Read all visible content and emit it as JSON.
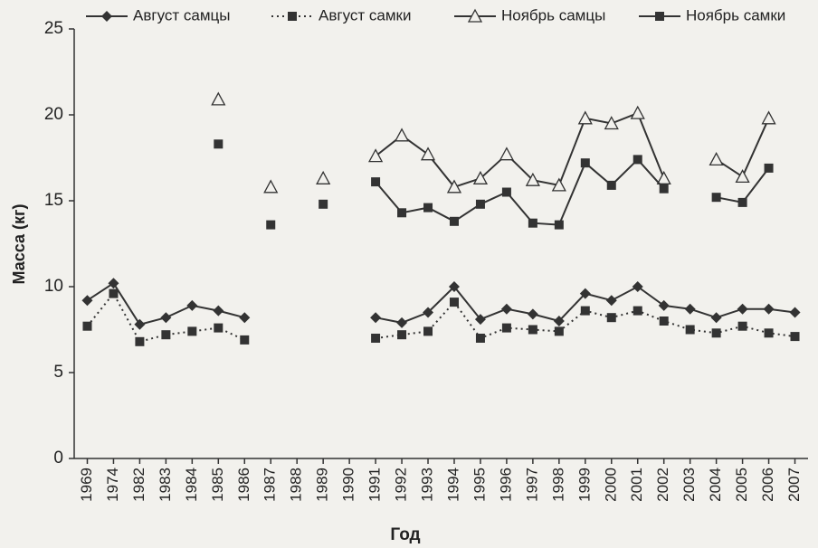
{
  "chart_data": {
    "type": "line",
    "y_label": "Масса (кг)",
    "x_label": "Год",
    "categories": [
      "1969",
      "1974",
      "1982",
      "1983",
      "1984",
      "1985",
      "1986",
      "1987",
      "1988",
      "1989",
      "1990",
      "1991",
      "1992",
      "1993",
      "1994",
      "1995",
      "1996",
      "1997",
      "1998",
      "1999",
      "2000",
      "2001",
      "2002",
      "2003",
      "2004",
      "2005",
      "2006",
      "2007"
    ],
    "series": [
      {
        "name": "Август самцы",
        "color": "#333333",
        "marker": "diamond",
        "line_style": "solid",
        "values": [
          9.2,
          10.2,
          7.8,
          8.2,
          8.9,
          8.6,
          8.2,
          null,
          null,
          null,
          null,
          8.2,
          7.9,
          8.5,
          10.0,
          8.1,
          8.7,
          8.4,
          8.0,
          9.6,
          9.2,
          10.0,
          8.9,
          8.7,
          8.2,
          8.7,
          8.7,
          8.5
        ]
      },
      {
        "name": "Август самки",
        "color": "#333333",
        "marker": "square",
        "line_style": "dotted",
        "values": [
          7.7,
          9.6,
          6.8,
          7.2,
          7.4,
          7.6,
          6.9,
          null,
          null,
          null,
          null,
          7.0,
          7.2,
          7.4,
          9.1,
          7.0,
          7.6,
          7.5,
          7.4,
          8.6,
          8.2,
          8.6,
          8.0,
          7.5,
          7.3,
          7.7,
          7.3,
          7.1
        ]
      },
      {
        "name": "Ноябрь самцы",
        "color": "#333333",
        "marker": "triangle-open",
        "line_style": "solid",
        "values": [
          null,
          null,
          null,
          null,
          null,
          20.9,
          null,
          15.8,
          null,
          16.3,
          null,
          17.6,
          18.8,
          17.7,
          15.8,
          16.3,
          17.7,
          16.2,
          15.9,
          19.8,
          19.5,
          20.1,
          16.3,
          null,
          17.4,
          16.4,
          19.8,
          null
        ]
      },
      {
        "name": "Ноябрь самки",
        "color": "#333333",
        "marker": "square",
        "line_style": "solid",
        "values": [
          null,
          null,
          null,
          null,
          null,
          18.3,
          null,
          13.6,
          null,
          14.8,
          null,
          16.1,
          14.3,
          14.6,
          13.8,
          14.8,
          15.5,
          13.7,
          13.6,
          17.2,
          15.9,
          17.4,
          15.7,
          null,
          15.2,
          14.9,
          16.9,
          null
        ]
      }
    ],
    "ylim": [
      0,
      25
    ],
    "yticks": [
      0,
      5,
      10,
      15,
      20,
      25
    ],
    "grid": false,
    "legend": "top"
  }
}
